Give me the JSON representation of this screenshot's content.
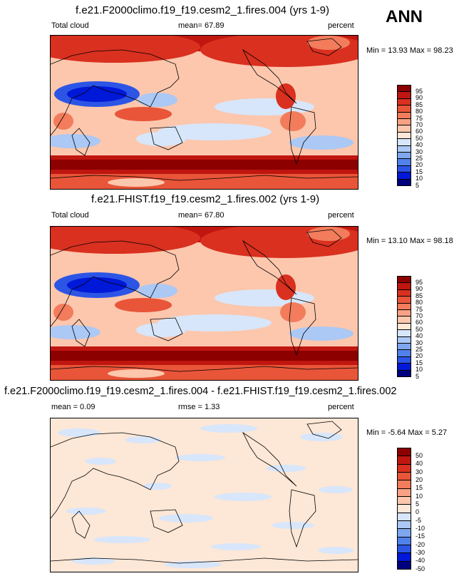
{
  "season": "ANN",
  "palette_full": [
    "#00007f",
    "#0018d8",
    "#2c55e6",
    "#5181ea",
    "#7ea7f0",
    "#acc8f5",
    "#d7e6fb",
    "#fde7d6",
    "#fcc7ad",
    "#f9a184",
    "#f27c5c",
    "#e85539",
    "#d9301f",
    "#bf160f",
    "#8c0000"
  ],
  "palette_diff": [
    "#00007f",
    "#0018d8",
    "#2c55e6",
    "#5181ea",
    "#7ea7f0",
    "#acc8f5",
    "#d7e6fb",
    "#fde7d6",
    "#fcc7ad",
    "#f9a184",
    "#f27c5c",
    "#e85539",
    "#d9301f",
    "#bf160f",
    "#8c0000"
  ],
  "panels": [
    {
      "title": "f.e21.F2000climo.f19_f19.cesm2_1.fires.004 (yrs 1-9)",
      "variable": "Total cloud",
      "stat_text": "mean=  67.89",
      "units": "percent",
      "minmax": "Min = 13.93 Max = 98.23"
    },
    {
      "title": "f.e21.FHIST.f19_f19.cesm2_1.fires.002 (yrs 1-9)",
      "variable": "Total cloud",
      "stat_text": "mean=  67.80",
      "units": "percent",
      "minmax": "Min = 13.10 Max = 98.18"
    },
    {
      "title": "f.e21.F2000climo.f19_f19.cesm2_1.fires.004 - f.e21.FHIST.f19_f19.cesm2_1.fires.002",
      "variable": "mean =   0.09",
      "stat_text": "rmse =   1.33",
      "units": "percent",
      "minmax": "Min = -5.64 Max =  5.27"
    }
  ],
  "chart_data": [
    {
      "type": "heatmap",
      "title": "f.e21.F2000climo.f19_f19.cesm2_1.fires.004 (yrs 1-9)",
      "variable": "Total cloud",
      "units": "percent",
      "mean": 67.89,
      "min": 13.93,
      "max": 98.23,
      "colorbar_levels": [
        "5",
        "10",
        "15",
        "20",
        "25",
        "30",
        "40",
        "50",
        "60",
        "70",
        "75",
        "80",
        "85",
        "90",
        "95"
      ]
    },
    {
      "type": "heatmap",
      "title": "f.e21.FHIST.f19_f19.cesm2_1.fires.002 (yrs 1-9)",
      "variable": "Total cloud",
      "units": "percent",
      "mean": 67.8,
      "min": 13.1,
      "max": 98.18,
      "colorbar_levels": [
        "5",
        "10",
        "15",
        "20",
        "25",
        "30",
        "40",
        "50",
        "60",
        "70",
        "75",
        "80",
        "85",
        "90",
        "95"
      ]
    },
    {
      "type": "heatmap",
      "title": "f.e21.F2000climo.f19_f19.cesm2_1.fires.004 - f.e21.FHIST.f19_f19.cesm2_1.fires.002",
      "units": "percent",
      "mean": 0.09,
      "rmse": 1.33,
      "min": -5.64,
      "max": 5.27,
      "colorbar_levels": [
        "-50",
        "-40",
        "-30",
        "-20",
        "-15",
        "-10",
        "-5",
        "0",
        "5",
        "10",
        "15",
        "20",
        "30",
        "40",
        "50"
      ]
    }
  ]
}
